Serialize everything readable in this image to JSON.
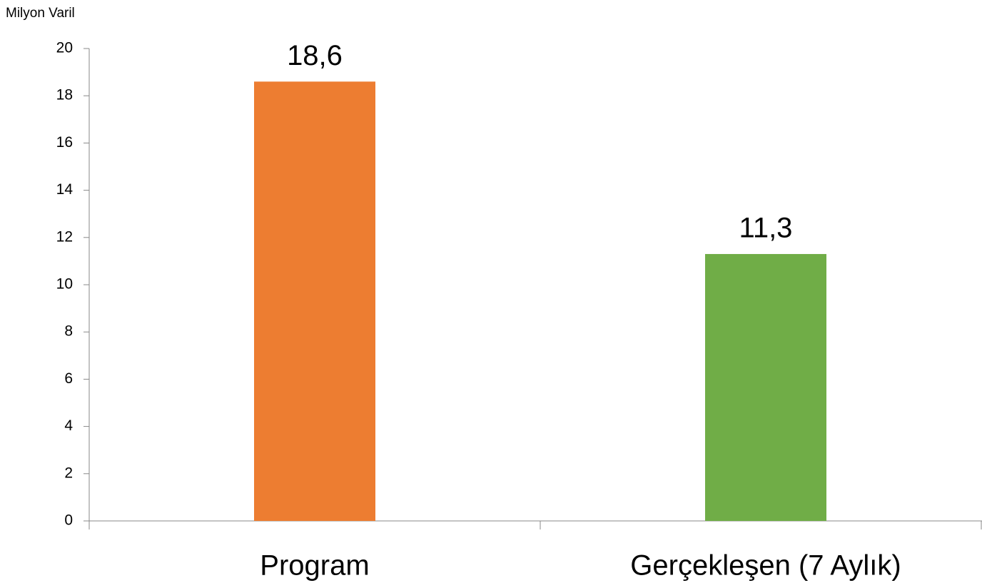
{
  "chart_data": {
    "type": "bar",
    "y_axis_label": "Milyon Varil",
    "categories": [
      "Program",
      "Gerçekleşen (7 Aylık)"
    ],
    "values": [
      18.6,
      11.3
    ],
    "value_labels": [
      "18,6",
      "11,3"
    ],
    "colors": [
      "#ed7d31",
      "#70ad47"
    ],
    "ylim": [
      0,
      20
    ],
    "yticks": [
      0,
      2,
      4,
      6,
      8,
      10,
      12,
      14,
      16,
      18,
      20
    ],
    "grid": false
  }
}
